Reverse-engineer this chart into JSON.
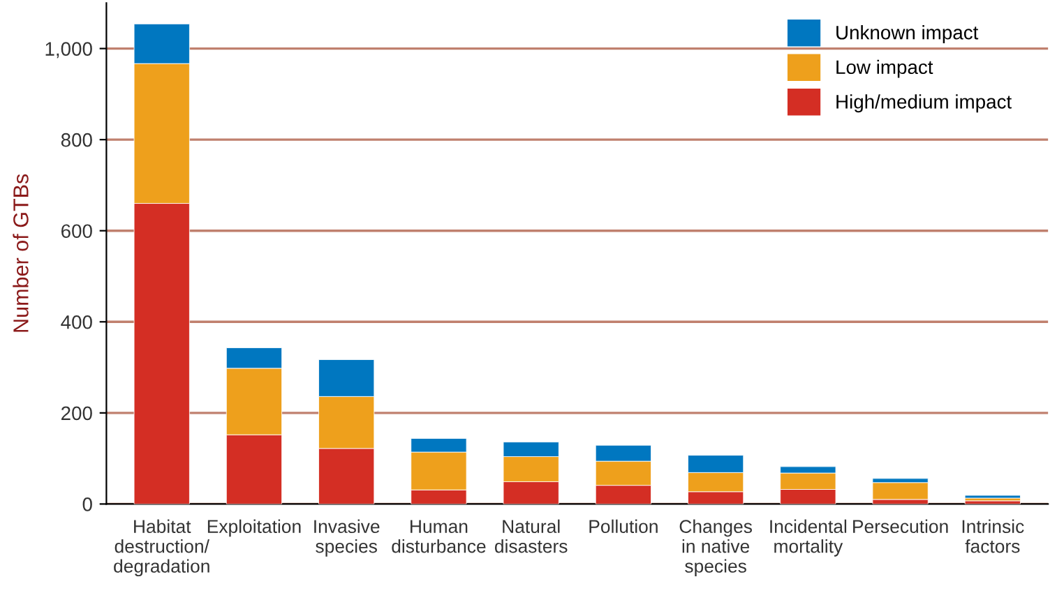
{
  "chart_data": {
    "type": "bar",
    "stacked": true,
    "ylabel": "Number of GTBs",
    "categories": [
      "Habitat\ndestruction/\ndegradation",
      "Exploitation",
      "Invasive\nspecies",
      "Human\ndisturbance",
      "Natural\ndisasters",
      "Pollution",
      "Changes\nin native\nspecies",
      "Incidental\nmortality",
      "Persecution",
      "Intrinsic\nfactors"
    ],
    "series": [
      {
        "name": "High/medium impact",
        "color": "#d42e24",
        "values": [
          660,
          152,
          122,
          31,
          49,
          41,
          27,
          32,
          10,
          7
        ]
      },
      {
        "name": "Low impact",
        "color": "#eea01c",
        "values": [
          307,
          146,
          114,
          83,
          55,
          53,
          42,
          36,
          37,
          6
        ]
      },
      {
        "name": "Unknown impact",
        "color": "#0077c0",
        "values": [
          87,
          45,
          81,
          30,
          32,
          35,
          38,
          14,
          9,
          6
        ]
      }
    ],
    "ylim": [
      0,
      1100
    ],
    "yticks": [
      0,
      200,
      400,
      600,
      800,
      {
        "value": 1000,
        "label": "1,000"
      }
    ],
    "grid": "y",
    "legend": "top right"
  }
}
